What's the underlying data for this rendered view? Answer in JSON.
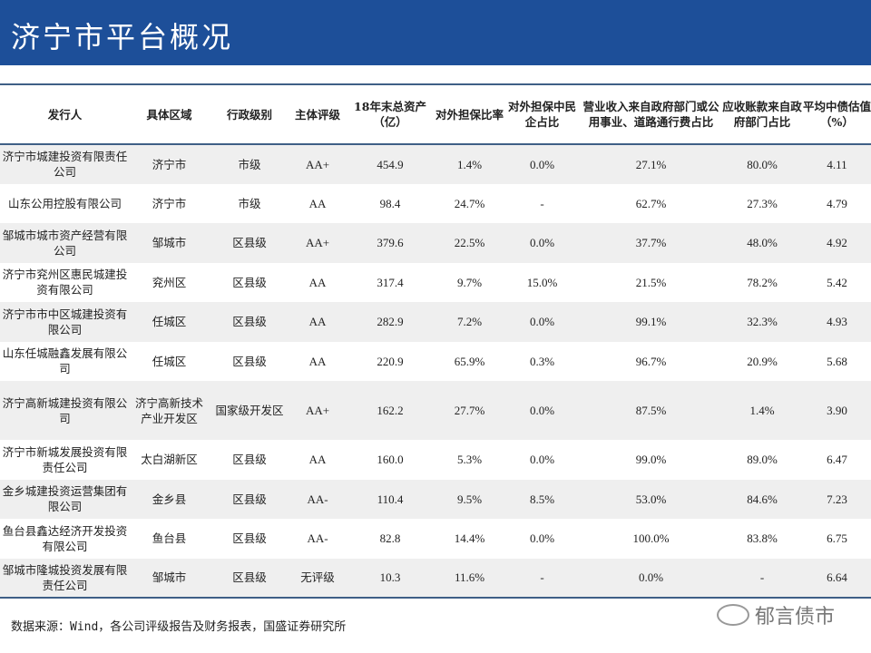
{
  "title": "济宁市平台概况",
  "table": {
    "headers": [
      "发行人",
      "具体区域",
      "行政级别",
      "主体评级",
      "18年末总资产（亿）",
      "对外担保比率",
      "对外担保中民企占比",
      "营业收入来自政府部门或公用事业、道路通行费占比",
      "应收账款来自政府部门占比",
      "平均中债估值（%）"
    ],
    "rows": [
      [
        "济宁市城建投资有限责任公司",
        "济宁市",
        "市级",
        "AA+",
        "454.9",
        "1.4%",
        "0.0%",
        "27.1%",
        "80.0%",
        "4.11"
      ],
      [
        "山东公用控股有限公司",
        "济宁市",
        "市级",
        "AA",
        "98.4",
        "24.7%",
        "-",
        "62.7%",
        "27.3%",
        "4.79"
      ],
      [
        "邹城市城市资产经营有限公司",
        "邹城市",
        "区县级",
        "AA+",
        "379.6",
        "22.5%",
        "0.0%",
        "37.7%",
        "48.0%",
        "4.92"
      ],
      [
        "济宁市兖州区惠民城建投资有限公司",
        "兖州区",
        "区县级",
        "AA",
        "317.4",
        "9.7%",
        "15.0%",
        "21.5%",
        "78.2%",
        "5.42"
      ],
      [
        "济宁市市中区城建投资有限公司",
        "任城区",
        "区县级",
        "AA",
        "282.9",
        "7.2%",
        "0.0%",
        "99.1%",
        "32.3%",
        "4.93"
      ],
      [
        "山东任城融鑫发展有限公司",
        "任城区",
        "区县级",
        "AA",
        "220.9",
        "65.9%",
        "0.3%",
        "96.7%",
        "20.9%",
        "5.68"
      ],
      [
        "济宁高新城建投资有限公司",
        "济宁高新技术产业开发区",
        "国家级开发区",
        "AA+",
        "162.2",
        "27.7%",
        "0.0%",
        "87.5%",
        "1.4%",
        "3.90"
      ],
      [
        "济宁市新城发展投资有限责任公司",
        "太白湖新区",
        "区县级",
        "AA",
        "160.0",
        "5.3%",
        "0.0%",
        "99.0%",
        "89.0%",
        "6.47"
      ],
      [
        "金乡城建投资运营集团有限公司",
        "金乡县",
        "区县级",
        "AA-",
        "110.4",
        "9.5%",
        "8.5%",
        "53.0%",
        "84.6%",
        "7.23"
      ],
      [
        "鱼台县鑫达经济开发投资有限公司",
        "鱼台县",
        "区县级",
        "AA-",
        "82.8",
        "14.4%",
        "0.0%",
        "100.0%",
        "83.8%",
        "6.75"
      ],
      [
        "邹城市隆城投资发展有限责任公司",
        "邹城市",
        "区县级",
        "无评级",
        "10.3",
        "11.6%",
        "-",
        "0.0%",
        "-",
        "6.64"
      ]
    ]
  },
  "source": "数据来源：Wind，各公司评级报告及财务报表，国盛证券研究所",
  "watermark": "郁言债市",
  "colors": {
    "title_bar": "#1d4f99",
    "row_shade": "#efefef",
    "rule": "#3f5f86"
  }
}
